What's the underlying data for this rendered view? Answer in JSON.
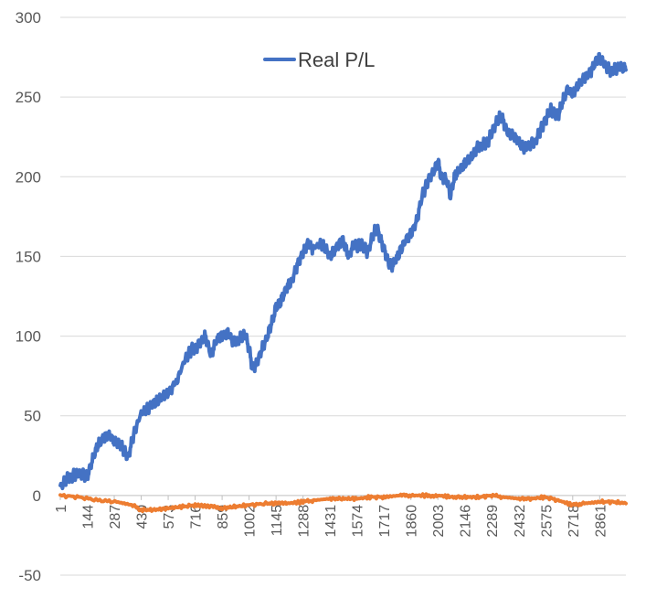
{
  "chart_data": {
    "type": "line",
    "x_tick_labels": [
      "1",
      "144",
      "287",
      "430",
      "573",
      "716",
      "859",
      "1002",
      "1145",
      "1288",
      "1431",
      "1574",
      "1717",
      "1860",
      "2003",
      "2146",
      "2289",
      "2432",
      "2575",
      "2718",
      "2861"
    ],
    "x_range": [
      1,
      3000
    ],
    "y_ticks": [
      "-50",
      "0",
      "50",
      "100",
      "150",
      "200",
      "250",
      "300"
    ],
    "ylim": [
      -50,
      300
    ],
    "grid": "horizontal",
    "legend": {
      "position": "top-center",
      "entries": [
        "Real P/L"
      ]
    },
    "colors": {
      "real_pl": "#4472C4",
      "second_series": "#ED7D31",
      "grid": "#D9D9D9",
      "axis": "#BFBFBF",
      "text": "#595959"
    },
    "series": [
      {
        "name": "Real P/L",
        "color": "#4472C4",
        "points": [
          [
            1,
            5
          ],
          [
            30,
            10
          ],
          [
            60,
            12
          ],
          [
            100,
            14
          ],
          [
            144,
            12
          ],
          [
            170,
            22
          ],
          [
            200,
            32
          ],
          [
            230,
            36
          ],
          [
            260,
            38
          ],
          [
            287,
            34
          ],
          [
            320,
            32
          ],
          [
            340,
            28
          ],
          [
            360,
            24
          ],
          [
            390,
            38
          ],
          [
            430,
            52
          ],
          [
            470,
            55
          ],
          [
            500,
            58
          ],
          [
            540,
            62
          ],
          [
            573,
            64
          ],
          [
            620,
            72
          ],
          [
            660,
            85
          ],
          [
            700,
            92
          ],
          [
            716,
            92
          ],
          [
            740,
            96
          ],
          [
            770,
            100
          ],
          [
            800,
            88
          ],
          [
            830,
            98
          ],
          [
            859,
            100
          ],
          [
            890,
            102
          ],
          [
            920,
            96
          ],
          [
            950,
            98
          ],
          [
            980,
            102
          ],
          [
            1002,
            92
          ],
          [
            1020,
            80
          ],
          [
            1040,
            82
          ],
          [
            1070,
            92
          ],
          [
            1100,
            100
          ],
          [
            1130,
            112
          ],
          [
            1145,
            118
          ],
          [
            1170,
            122
          ],
          [
            1200,
            130
          ],
          [
            1230,
            135
          ],
          [
            1260,
            145
          ],
          [
            1288,
            152
          ],
          [
            1310,
            158
          ],
          [
            1340,
            155
          ],
          [
            1380,
            158
          ],
          [
            1400,
            156
          ],
          [
            1431,
            150
          ],
          [
            1460,
            155
          ],
          [
            1500,
            160
          ],
          [
            1530,
            150
          ],
          [
            1560,
            158
          ],
          [
            1574,
            156
          ],
          [
            1600,
            158
          ],
          [
            1630,
            152
          ],
          [
            1660,
            164
          ],
          [
            1680,
            168
          ],
          [
            1700,
            160
          ],
          [
            1717,
            155
          ],
          [
            1740,
            146
          ],
          [
            1760,
            144
          ],
          [
            1790,
            150
          ],
          [
            1830,
            160
          ],
          [
            1860,
            164
          ],
          [
            1890,
            172
          ],
          [
            1920,
            188
          ],
          [
            1960,
            200
          ],
          [
            1990,
            205
          ],
          [
            2003,
            210
          ],
          [
            2020,
            200
          ],
          [
            2050,
            198
          ],
          [
            2070,
            188
          ],
          [
            2090,
            200
          ],
          [
            2120,
            205
          ],
          [
            2146,
            208
          ],
          [
            2180,
            212
          ],
          [
            2210,
            218
          ],
          [
            2240,
            220
          ],
          [
            2270,
            222
          ],
          [
            2289,
            228
          ],
          [
            2320,
            236
          ],
          [
            2340,
            238
          ],
          [
            2370,
            228
          ],
          [
            2400,
            226
          ],
          [
            2432,
            222
          ],
          [
            2460,
            218
          ],
          [
            2490,
            220
          ],
          [
            2520,
            222
          ],
          [
            2550,
            230
          ],
          [
            2575,
            236
          ],
          [
            2600,
            242
          ],
          [
            2620,
            240
          ],
          [
            2640,
            238
          ],
          [
            2660,
            246
          ],
          [
            2690,
            255
          ],
          [
            2718,
            252
          ],
          [
            2750,
            258
          ],
          [
            2780,
            262
          ],
          [
            2810,
            265
          ],
          [
            2840,
            272
          ],
          [
            2861,
            275
          ],
          [
            2890,
            270
          ],
          [
            2920,
            266
          ],
          [
            2950,
            268
          ],
          [
            2980,
            269
          ],
          [
            3000,
            267
          ]
        ]
      },
      {
        "color": "#ED7D31",
        "points": [
          [
            1,
            0
          ],
          [
            100,
            -1
          ],
          [
            200,
            -3
          ],
          [
            300,
            -4
          ],
          [
            380,
            -6
          ],
          [
            430,
            -9
          ],
          [
            500,
            -9
          ],
          [
            573,
            -8
          ],
          [
            650,
            -7
          ],
          [
            716,
            -6
          ],
          [
            800,
            -7
          ],
          [
            859,
            -8
          ],
          [
            930,
            -7
          ],
          [
            1002,
            -6
          ],
          [
            1100,
            -5
          ],
          [
            1145,
            -5
          ],
          [
            1200,
            -5
          ],
          [
            1288,
            -4
          ],
          [
            1350,
            -3
          ],
          [
            1431,
            -2
          ],
          [
            1500,
            -2
          ],
          [
            1574,
            -2
          ],
          [
            1650,
            -1
          ],
          [
            1717,
            -1
          ],
          [
            1800,
            0
          ],
          [
            1860,
            0
          ],
          [
            1950,
            0
          ],
          [
            2003,
            0
          ],
          [
            2080,
            -1
          ],
          [
            2146,
            -1
          ],
          [
            2220,
            -1
          ],
          [
            2289,
            0
          ],
          [
            2350,
            -1
          ],
          [
            2432,
            -2
          ],
          [
            2500,
            -2
          ],
          [
            2575,
            -1
          ],
          [
            2640,
            -3
          ],
          [
            2718,
            -6
          ],
          [
            2780,
            -5
          ],
          [
            2861,
            -4
          ],
          [
            2930,
            -4
          ],
          [
            3000,
            -5
          ]
        ]
      }
    ]
  }
}
